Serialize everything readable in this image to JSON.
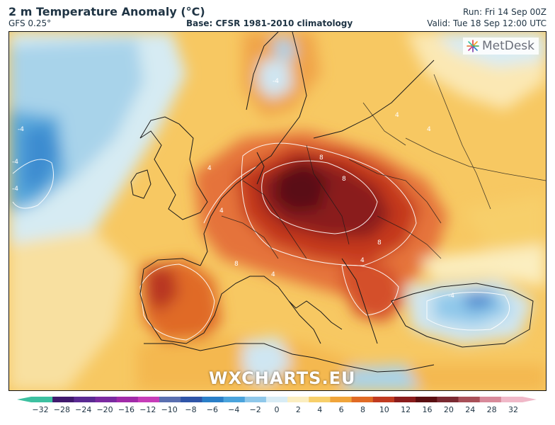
{
  "header": {
    "title": "2 m Temperature Anomaly (°C)",
    "model": "GFS 0.25°",
    "base": "Base: CFSR 1981-2010 climatology",
    "run": "Run: Fri 14 Sep 00Z",
    "valid": "Valid: Tue 18 Sep 12:00 UTC"
  },
  "map": {
    "logo_text": "MetDesk",
    "watermark": "WXCHARTS.EU",
    "contour_labels": [
      "-4",
      "-4",
      "-4",
      "4",
      "4",
      "4",
      "8",
      "8",
      "8",
      "8",
      "4",
      "4",
      "-4",
      "-4",
      "4"
    ]
  },
  "colorbar": {
    "ticks": [
      "-32",
      "-28",
      "-24",
      "-20",
      "-16",
      "-12",
      "-10",
      "-8",
      "-6",
      "-4",
      "-2",
      "0",
      "2",
      "4",
      "6",
      "8",
      "10",
      "12",
      "16",
      "20",
      "24",
      "28",
      "32"
    ],
    "colors": [
      "#3cc0a0",
      "#401a6e",
      "#5a2a92",
      "#7a2aa0",
      "#a02aa8",
      "#c63cb8",
      "#5a6fb0",
      "#2f55a8",
      "#2a7fc8",
      "#4aa3dc",
      "#8fc8ea",
      "#d8ecf5",
      "#fbeec0",
      "#f7cf6a",
      "#f0a43a",
      "#e06a24",
      "#c03a20",
      "#8a1c1c",
      "#5a0f12",
      "#7a2a32",
      "#a85058",
      "#d88a9a",
      "#f0b8c8"
    ]
  }
}
